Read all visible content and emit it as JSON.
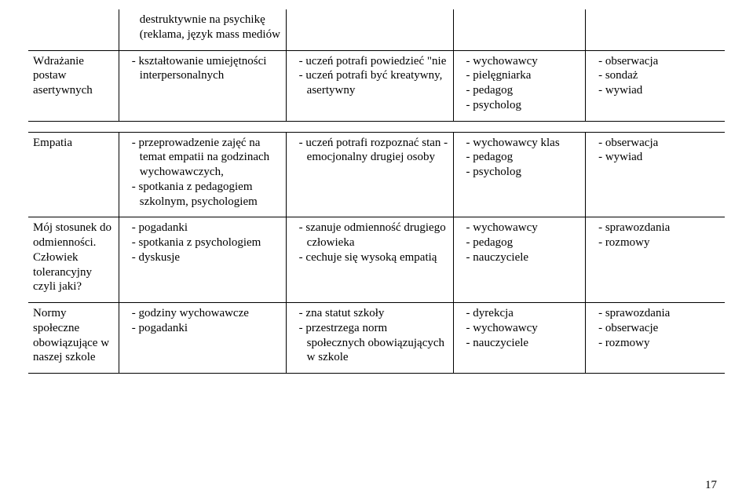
{
  "columns": {
    "w0": "13%",
    "w1": "24%",
    "w2": "24%",
    "w3": "19%",
    "w4": "20%"
  },
  "row0": {
    "c1": "destruktywnie na psychikę (reklama, język mass mediów"
  },
  "row1": {
    "c0": "Wdrażanie postaw asertywnych",
    "c1_items": [
      "kształtowanie umiejętności interpersonalnych"
    ],
    "c2_items": [
      "uczeń potrafi powiedzieć \"nie",
      "uczeń potrafi być kreatywny, asertywny"
    ],
    "c3_items": [
      "wychowawcy",
      "pielęgniarka",
      "pedagog",
      "psycholog"
    ],
    "c4_items": [
      "obserwacja",
      "sondaż",
      "wywiad"
    ]
  },
  "row2": {
    "c0": "Empatia",
    "c1_items": [
      "przeprowadzenie zajęć na temat empatii na godzinach wychowawczych,",
      "spotkania z pedagogiem szkolnym, psychologiem"
    ],
    "c2_items": [
      "uczeń potrafi rozpoznać stan - emocjonalny drugiej osoby"
    ],
    "c3_items": [
      "wychowawcy klas",
      "pedagog",
      "psycholog"
    ],
    "c4_items": [
      "obserwacja",
      "wywiad"
    ]
  },
  "row3": {
    "c0": "Mój stosunek do odmienności. Człowiek tolerancyjny czyli jaki?",
    "c1_items": [
      "pogadanki",
      "spotkania z psychologiem",
      "dyskusje"
    ],
    "c2_items": [
      "szanuje odmienność drugiego człowieka",
      "cechuje się wysoką empatią"
    ],
    "c3_items": [
      "wychowawcy",
      "pedagog",
      "nauczyciele"
    ],
    "c4_items": [
      "sprawozdania",
      "rozmowy"
    ]
  },
  "row4": {
    "c0": "Normy społeczne obowiązujące w naszej szkole",
    "c1_items": [
      "godziny wychowawcze",
      "pogadanki"
    ],
    "c2_items": [
      "zna statut szkoły",
      "przestrzega norm społecznych obowiązujących w szkole"
    ],
    "c3_items": [
      "dyrekcja",
      "wychowawcy",
      "nauczyciele"
    ],
    "c4_items": [
      "sprawozdania",
      "obserwacje",
      "rozmowy"
    ]
  },
  "page_number": "17"
}
